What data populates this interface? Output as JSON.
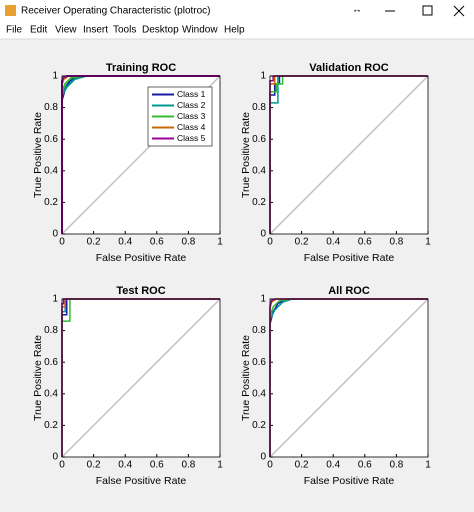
{
  "window": {
    "title": "Receiver Operating Characteristic (plotroc)",
    "menu": [
      "File",
      "Edit",
      "View",
      "Insert",
      "Tools",
      "Desktop",
      "Window",
      "Help"
    ]
  },
  "chart_data": [
    {
      "type": "line",
      "title": "Training ROC",
      "xlabel": "False Positive Rate",
      "ylabel": "True Positive Rate",
      "xlim": [
        0,
        1
      ],
      "ylim": [
        0,
        1
      ],
      "xticks": [
        0,
        0.2,
        0.4,
        0.6,
        0.8,
        1
      ],
      "yticks": [
        0,
        0.2,
        0.4,
        0.6,
        0.8,
        1
      ],
      "grid": false,
      "legend": "upper right",
      "series": [
        {
          "color": "#c0c0c0",
          "x": [
            0,
            1
          ],
          "values": [
            0,
            1
          ]
        },
        {
          "name": "Class 1",
          "color": "#1a1aa6",
          "x": [
            0,
            0,
            0.02,
            0.05,
            0.1,
            1
          ],
          "values": [
            0,
            0.85,
            0.92,
            0.97,
            1,
            1
          ]
        },
        {
          "name": "Class 2",
          "color": "#00998f",
          "x": [
            0,
            0,
            0.03,
            0.08,
            0.15,
            1
          ],
          "values": [
            0,
            0.88,
            0.93,
            0.98,
            1,
            1
          ]
        },
        {
          "name": "Class 3",
          "color": "#33bb33",
          "x": [
            0,
            0,
            0.02,
            0.06,
            0.12,
            1
          ],
          "values": [
            0,
            0.9,
            0.95,
            0.99,
            1,
            1
          ]
        },
        {
          "name": "Class 4",
          "color": "#cc6600",
          "x": [
            0,
            0,
            0.01,
            0.04,
            1
          ],
          "values": [
            0,
            0.95,
            0.98,
            1,
            1
          ]
        },
        {
          "name": "Class 5",
          "color": "#990099",
          "x": [
            0,
            0,
            0.01,
            0.03,
            1
          ],
          "values": [
            0,
            0.97,
            0.99,
            1,
            1
          ]
        }
      ]
    },
    {
      "type": "line",
      "title": "Validation ROC",
      "xlabel": "False Positive Rate",
      "ylabel": "True Positive Rate",
      "xlim": [
        0,
        1
      ],
      "ylim": [
        0,
        1
      ],
      "xticks": [
        0,
        0.2,
        0.4,
        0.6,
        0.8,
        1
      ],
      "yticks": [
        0,
        0.2,
        0.4,
        0.6,
        0.8,
        1
      ],
      "grid": false,
      "series": [
        {
          "color": "#c0c0c0",
          "x": [
            0,
            1
          ],
          "values": [
            0,
            1
          ]
        },
        {
          "color": "#1a1aa6",
          "x": [
            0,
            0,
            0.03,
            0.03,
            0.06,
            0.06,
            1
          ],
          "values": [
            0,
            0.88,
            0.88,
            0.95,
            0.95,
            1,
            1
          ]
        },
        {
          "color": "#00998f",
          "x": [
            0,
            0,
            0.05,
            0.05,
            1
          ],
          "values": [
            0,
            0.83,
            0.83,
            1,
            1
          ]
        },
        {
          "color": "#33bb33",
          "x": [
            0,
            0,
            0.04,
            0.04,
            0.08,
            0.08,
            1
          ],
          "values": [
            0,
            0.9,
            0.9,
            0.95,
            0.95,
            1,
            1
          ]
        },
        {
          "color": "#cc6600",
          "x": [
            0,
            0,
            0.03,
            0.03,
            1
          ],
          "values": [
            0,
            0.95,
            0.95,
            1,
            1
          ]
        },
        {
          "color": "#990099",
          "x": [
            0,
            0,
            0.02,
            0.02,
            1
          ],
          "values": [
            0,
            0.97,
            0.97,
            1,
            1
          ]
        }
      ]
    },
    {
      "type": "line",
      "title": "Test ROC",
      "xlabel": "False Positive Rate",
      "ylabel": "True Positive Rate",
      "xlim": [
        0,
        1
      ],
      "ylim": [
        0,
        1
      ],
      "xticks": [
        0,
        0.2,
        0.4,
        0.6,
        0.8,
        1
      ],
      "yticks": [
        0,
        0.2,
        0.4,
        0.6,
        0.8,
        1
      ],
      "grid": false,
      "series": [
        {
          "color": "#c0c0c0",
          "x": [
            0,
            1
          ],
          "values": [
            0,
            1
          ]
        },
        {
          "color": "#1a1aa6",
          "x": [
            0,
            0,
            0.03,
            0.03,
            1
          ],
          "values": [
            0,
            0.9,
            0.9,
            1,
            1
          ]
        },
        {
          "color": "#00998f",
          "x": [
            0,
            0,
            0.02,
            0.02,
            1
          ],
          "values": [
            0,
            0.92,
            0.92,
            1,
            1
          ]
        },
        {
          "color": "#33bb33",
          "x": [
            0,
            0,
            0.05,
            0.05,
            1
          ],
          "values": [
            0,
            0.86,
            0.86,
            1,
            1
          ]
        },
        {
          "color": "#cc6600",
          "x": [
            0,
            0,
            0.02,
            0.02,
            1
          ],
          "values": [
            0,
            0.95,
            0.95,
            1,
            1
          ]
        },
        {
          "color": "#990099",
          "x": [
            0,
            0,
            0.01,
            0.01,
            1
          ],
          "values": [
            0,
            0.97,
            0.97,
            1,
            1
          ]
        }
      ]
    },
    {
      "type": "line",
      "title": "All ROC",
      "xlabel": "False Positive Rate",
      "ylabel": "True Positive Rate",
      "xlim": [
        0,
        1
      ],
      "ylim": [
        0,
        1
      ],
      "xticks": [
        0,
        0.2,
        0.4,
        0.6,
        0.8,
        1
      ],
      "yticks": [
        0,
        0.2,
        0.4,
        0.6,
        0.8,
        1
      ],
      "grid": false,
      "series": [
        {
          "color": "#c0c0c0",
          "x": [
            0,
            1
          ],
          "values": [
            0,
            1
          ]
        },
        {
          "color": "#1a1aa6",
          "x": [
            0,
            0,
            0.02,
            0.05,
            0.1,
            1
          ],
          "values": [
            0,
            0.84,
            0.92,
            0.97,
            1,
            1
          ]
        },
        {
          "color": "#00998f",
          "x": [
            0,
            0,
            0.03,
            0.08,
            0.14,
            1
          ],
          "values": [
            0,
            0.87,
            0.93,
            0.98,
            1,
            1
          ]
        },
        {
          "color": "#33bb33",
          "x": [
            0,
            0,
            0.02,
            0.06,
            0.12,
            1
          ],
          "values": [
            0,
            0.89,
            0.95,
            0.99,
            1,
            1
          ]
        },
        {
          "color": "#cc6600",
          "x": [
            0,
            0,
            0.01,
            0.04,
            1
          ],
          "values": [
            0,
            0.94,
            0.98,
            1,
            1
          ]
        },
        {
          "color": "#990099",
          "x": [
            0,
            0,
            0.01,
            0.03,
            1
          ],
          "values": [
            0,
            0.96,
            0.99,
            1,
            1
          ]
        }
      ]
    }
  ]
}
